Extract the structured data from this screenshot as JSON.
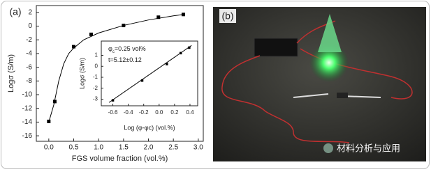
{
  "panels": {
    "a": "(a)",
    "b": "(b)"
  },
  "watermark": "材料分析与应用",
  "chart_data": [
    {
      "type": "scatter",
      "x_label": "FGS volume fraction (vol.%)",
      "y_label": "Logσ (S/m)",
      "xlim": [
        -0.25,
        3.1
      ],
      "ylim": [
        -16.8,
        3
      ],
      "xticks": [
        {
          "value": 0,
          "label": "0.0"
        },
        0.5,
        {
          "value": 1,
          "label": "1.0"
        },
        1.5,
        {
          "value": 2,
          "label": "2.0"
        },
        2.5,
        {
          "value": 3,
          "label": "3.0"
        }
      ],
      "yticks": [
        -16,
        -14,
        -12,
        -10,
        -8,
        -6,
        -4,
        -2,
        0,
        2
      ],
      "series": [
        {
          "type": "scatter",
          "color": "#000000",
          "x": [
            0.0,
            0.12,
            0.5,
            0.85,
            1.5,
            2.2,
            2.7
          ],
          "values": [
            -13.9,
            -11,
            -3,
            -1.2,
            0.1,
            1.3,
            1.7
          ]
        },
        {
          "type": "line",
          "color": "#000000",
          "x": [
            0.0,
            0.1,
            0.2,
            0.3,
            0.4,
            0.5,
            0.7,
            1.0,
            1.5,
            2.0,
            2.5,
            2.7
          ],
          "values": [
            -14,
            -11.5,
            -8,
            -5.5,
            -4,
            -3.2,
            -2,
            -1,
            0.1,
            0.9,
            1.5,
            1.7
          ]
        }
      ]
    },
    {
      "type": "scatter",
      "x_label": "Log (φ-φc) (vol.%)",
      "y_label": "Logσ (S/m)",
      "annotations": [
        [
          "φ",
          "c",
          "=0.25 vol%"
        ],
        [
          "t=5.12±0.12"
        ]
      ],
      "xlim": [
        -0.75,
        0.5
      ],
      "ylim": [
        -3.6,
        2.3
      ],
      "xticks": [
        -0.6,
        -0.4,
        -0.2,
        {
          "value": 0,
          "label": "0.0"
        },
        0.2,
        0.4
      ],
      "yticks": [
        -3,
        -2,
        -1,
        0,
        1
      ],
      "series": [
        {
          "type": "scatter",
          "color": "#000000",
          "x": [
            -0.6,
            -0.22,
            0.1,
            0.28,
            0.39
          ],
          "values": [
            -3.1,
            -1.3,
            0.2,
            1.2,
            1.7
          ]
        },
        {
          "type": "line",
          "color": "#000000",
          "x": [
            -0.65,
            0.42
          ],
          "values": [
            -3.3,
            1.9
          ]
        }
      ]
    }
  ]
}
